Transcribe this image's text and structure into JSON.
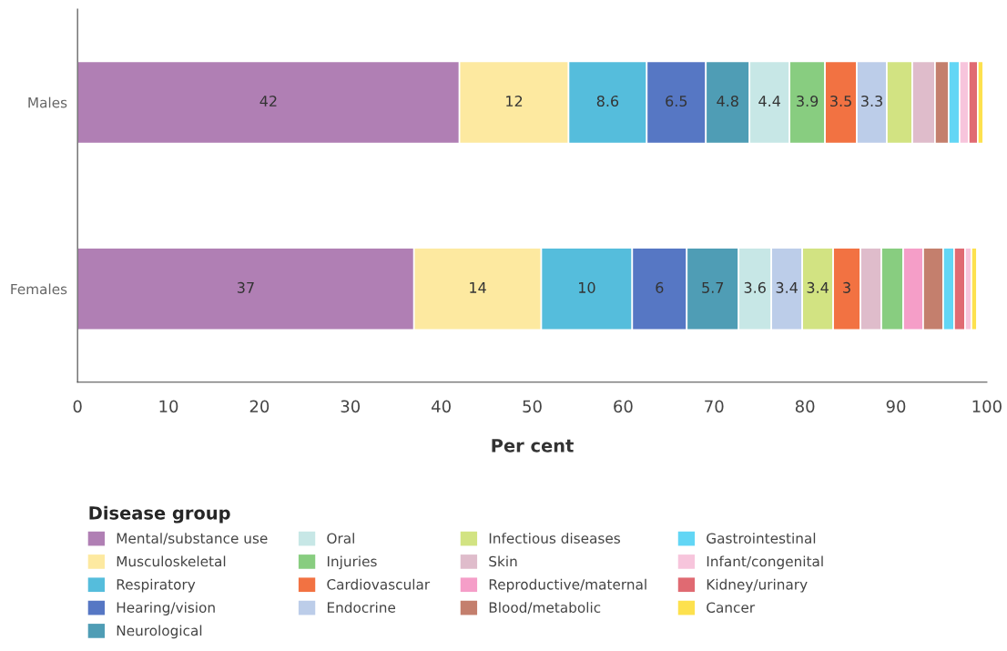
{
  "chart_data": {
    "type": "bar",
    "orientation": "horizontal",
    "stacked": true,
    "xlabel": "Per cent",
    "legend_title": "Disease group",
    "legend": "bottom",
    "grid": false,
    "categories": [
      "Males",
      "Females"
    ],
    "xlim": [
      0,
      100
    ],
    "xticks": [
      0,
      10,
      20,
      30,
      40,
      50,
      60,
      70,
      80,
      90,
      100
    ],
    "series": [
      {
        "name": "Mental/substance use",
        "color": "#b07fb4",
        "values": [
          42,
          37
        ],
        "value_labels": [
          "42",
          "37"
        ]
      },
      {
        "name": "Musculoskeletal",
        "color": "#fde9a0",
        "values": [
          12,
          14
        ],
        "value_labels": [
          "12",
          "14"
        ]
      },
      {
        "name": "Respiratory",
        "color": "#55bddc",
        "values": [
          8.6,
          10
        ],
        "value_labels": [
          "8.6",
          "10"
        ]
      },
      {
        "name": "Hearing/vision",
        "color": "#5677c4",
        "values": [
          6.5,
          6
        ],
        "value_labels": [
          "6.5",
          "6"
        ]
      },
      {
        "name": "Neurological",
        "color": "#4f9db5",
        "values": [
          4.8,
          5.7
        ],
        "value_labels": [
          "4.8",
          "5.7"
        ]
      },
      {
        "name": "Oral",
        "color": "#c7e7e6",
        "values": [
          4.4,
          3.6
        ],
        "value_labels": [
          "4.4",
          "3.6"
        ]
      },
      {
        "color": "#bccde9",
        "values": [
          null,
          3.4
        ],
        "value_labels": [
          null,
          "3.4"
        ]
      },
      {
        "color": "#d2e382",
        "values": [
          null,
          3.4
        ],
        "value_labels": [
          null,
          "3.4"
        ]
      },
      {
        "name": "Injuries",
        "color": "#88cd80",
        "values": [
          3.9,
          null
        ],
        "value_labels": [
          "3.9",
          null
        ]
      },
      {
        "name": "Cardiovascular",
        "color": "#f27242",
        "values": [
          3.5,
          3
        ],
        "value_labels": [
          "3.5",
          "3"
        ]
      },
      {
        "name": "Endocrine",
        "color": "#bccde9",
        "values": [
          3.3,
          null
        ],
        "value_labels": [
          "3.3",
          null
        ]
      },
      {
        "name": "Infectious diseases",
        "color": "#d2e382",
        "values": [
          2.8,
          null
        ]
      },
      {
        "name": "Skin",
        "color": "#dfbccb",
        "values": [
          2.5,
          2.3
        ]
      },
      {
        "color": "#88cd80",
        "values": [
          null,
          2.4
        ]
      },
      {
        "name": "Reproductive/maternal",
        "color": "#f59ec8",
        "values": [
          null,
          2.2
        ]
      },
      {
        "name": "Blood/metabolic",
        "color": "#c47f6d",
        "values": [
          1.5,
          2.2
        ]
      },
      {
        "name": "Gastrointestinal",
        "color": "#62d6f5",
        "values": [
          1.2,
          1.2
        ]
      },
      {
        "name": "Infant/congenital",
        "color": "#f7c5dc",
        "values": [
          1.0,
          null
        ]
      },
      {
        "name": "Kidney/urinary",
        "color": "#e06a72",
        "values": [
          1.0,
          1.2
        ]
      },
      {
        "color": "#f7c5dc",
        "values": [
          null,
          0.7
        ]
      },
      {
        "name": "Cancer",
        "color": "#fde14e",
        "values": [
          0.6,
          0.6
        ]
      }
    ]
  }
}
